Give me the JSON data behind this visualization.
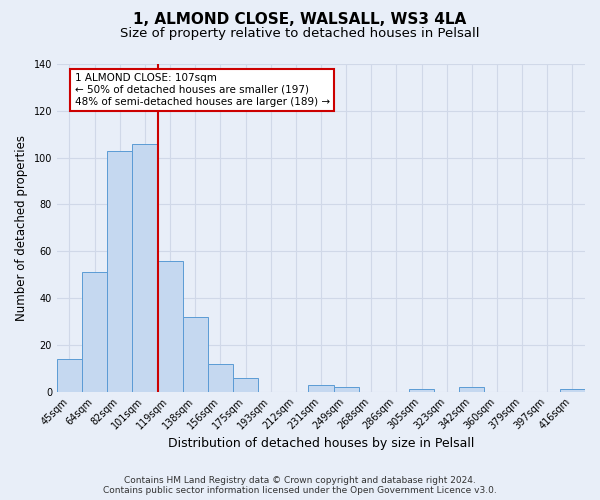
{
  "title": "1, ALMOND CLOSE, WALSALL, WS3 4LA",
  "subtitle": "Size of property relative to detached houses in Pelsall",
  "xlabel": "Distribution of detached houses by size in Pelsall",
  "ylabel": "Number of detached properties",
  "bar_labels": [
    "45sqm",
    "64sqm",
    "82sqm",
    "101sqm",
    "119sqm",
    "138sqm",
    "156sqm",
    "175sqm",
    "193sqm",
    "212sqm",
    "231sqm",
    "249sqm",
    "268sqm",
    "286sqm",
    "305sqm",
    "323sqm",
    "342sqm",
    "360sqm",
    "379sqm",
    "397sqm",
    "416sqm"
  ],
  "bar_values": [
    14,
    51,
    103,
    106,
    56,
    32,
    12,
    6,
    0,
    0,
    3,
    2,
    0,
    0,
    1,
    0,
    2,
    0,
    0,
    0,
    1
  ],
  "bar_color": "#c5d8f0",
  "bar_edge_color": "#5b9bd5",
  "annotation_text_line1": "1 ALMOND CLOSE: 107sqm",
  "annotation_text_line2": "← 50% of detached houses are smaller (197)",
  "annotation_text_line3": "48% of semi-detached houses are larger (189) →",
  "annotation_box_color": "#ffffff",
  "annotation_box_edge_color": "#cc0000",
  "vline_color": "#cc0000",
  "vline_x": 3.5,
  "ylim": [
    0,
    140
  ],
  "yticks": [
    0,
    20,
    40,
    60,
    80,
    100,
    120,
    140
  ],
  "grid_color": "#d0d8e8",
  "bg_color": "#e8eef8",
  "footer_line1": "Contains HM Land Registry data © Crown copyright and database right 2024.",
  "footer_line2": "Contains public sector information licensed under the Open Government Licence v3.0.",
  "title_fontsize": 11,
  "subtitle_fontsize": 9.5,
  "xlabel_fontsize": 9,
  "ylabel_fontsize": 8.5,
  "tick_fontsize": 7,
  "annotation_fontsize": 7.5,
  "footer_fontsize": 6.5
}
